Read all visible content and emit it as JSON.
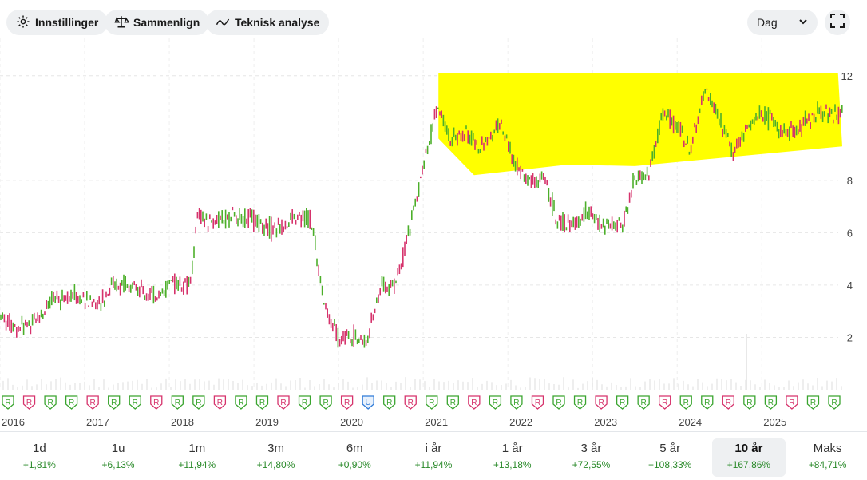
{
  "toolbar": {
    "settings_label": "Innstillinger",
    "compare_label": "Sammenlign",
    "ta_label": "Teknisk analyse",
    "interval_value": "Dag"
  },
  "ranges": [
    {
      "label": "1d",
      "change": "+1,81%"
    },
    {
      "label": "1u",
      "change": "+6,13%"
    },
    {
      "label": "1m",
      "change": "+11,94%"
    },
    {
      "label": "3m",
      "change": "+14,80%"
    },
    {
      "label": "6m",
      "change": "+0,90%"
    },
    {
      "label": "i år",
      "change": "+11,94%"
    },
    {
      "label": "1 år",
      "change": "+13,18%"
    },
    {
      "label": "3 år",
      "change": "+72,55%"
    },
    {
      "label": "5 år",
      "change": "+108,33%"
    },
    {
      "label": "10 år",
      "change": "+167,86%",
      "active": true
    },
    {
      "label": "Maks",
      "change": "+84,71%"
    }
  ],
  "colors": {
    "up": "#4caf2a",
    "down": "#d6336c",
    "highlight": "#ffff00",
    "positive_text": "#2a8a2a"
  },
  "chart_data": {
    "type": "line",
    "title": "",
    "xlabel": "",
    "ylabel": "",
    "x_ticks": [
      "2016",
      "2017",
      "2018",
      "2019",
      "2020",
      "2021",
      "2022",
      "2023",
      "2024",
      "2025"
    ],
    "y_ticks": [
      2,
      4,
      6,
      8,
      12
    ],
    "ylim": [
      0,
      13
    ],
    "grid": true,
    "series": [
      {
        "values": [
          [
            "2016-01",
            3.0
          ],
          [
            "2016-03",
            2.3
          ],
          [
            "2016-06",
            2.7
          ],
          [
            "2016-09",
            3.5
          ],
          [
            "2016-11",
            3.6
          ],
          [
            "2017-01",
            3.5
          ],
          [
            "2017-03",
            3.2
          ],
          [
            "2017-05",
            4.1
          ],
          [
            "2017-08",
            3.9
          ],
          [
            "2017-11",
            3.6
          ],
          [
            "2018-02",
            4.1
          ],
          [
            "2018-04",
            4.0
          ],
          [
            "2018-05",
            6.6
          ],
          [
            "2018-07",
            6.4
          ],
          [
            "2018-10",
            6.6
          ],
          [
            "2019-01",
            6.5
          ],
          [
            "2019-04",
            6.1
          ],
          [
            "2019-07",
            6.5
          ],
          [
            "2019-09",
            6.6
          ],
          [
            "2019-11",
            3.2
          ],
          [
            "2020-01",
            2.0
          ],
          [
            "2020-03",
            2.1
          ],
          [
            "2020-05",
            1.8
          ],
          [
            "2020-07",
            4.0
          ],
          [
            "2020-09",
            4.0
          ],
          [
            "2020-11",
            6.0
          ],
          [
            "2021-01",
            8.5
          ],
          [
            "2021-03",
            10.8
          ],
          [
            "2021-05",
            9.5
          ],
          [
            "2021-07",
            9.8
          ],
          [
            "2021-09",
            9.2
          ],
          [
            "2021-12",
            10.2
          ],
          [
            "2022-02",
            8.6
          ],
          [
            "2022-04",
            7.9
          ],
          [
            "2022-06",
            8.1
          ],
          [
            "2022-08",
            6.5
          ],
          [
            "2022-10",
            6.2
          ],
          [
            "2022-12",
            6.8
          ],
          [
            "2023-02",
            6.4
          ],
          [
            "2023-05",
            6.2
          ],
          [
            "2023-07",
            8.0
          ],
          [
            "2023-09",
            8.3
          ],
          [
            "2023-11",
            10.6
          ],
          [
            "2024-01",
            10.1
          ],
          [
            "2024-03",
            9.2
          ],
          [
            "2024-05",
            11.5
          ],
          [
            "2024-07",
            10.3
          ],
          [
            "2024-09",
            9.2
          ],
          [
            "2024-11",
            10.0
          ],
          [
            "2025-01",
            10.6
          ],
          [
            "2025-03",
            10.1
          ],
          [
            "2025-05",
            9.8
          ],
          [
            "2025-07",
            10.2
          ],
          [
            "2025-09",
            10.6
          ]
        ]
      }
    ],
    "events": [
      "R",
      "R",
      "R",
      "R",
      "R",
      "R",
      "R",
      "R",
      "R",
      "R",
      "R",
      "R",
      "R",
      "R",
      "R",
      "R",
      "R",
      "U",
      "R",
      "R",
      "R",
      "R",
      "R",
      "R",
      "R",
      "R",
      "R",
      "R",
      "R",
      "R",
      "R",
      "R",
      "R",
      "R",
      "R",
      "R",
      "R",
      "R",
      "R",
      "R"
    ]
  }
}
